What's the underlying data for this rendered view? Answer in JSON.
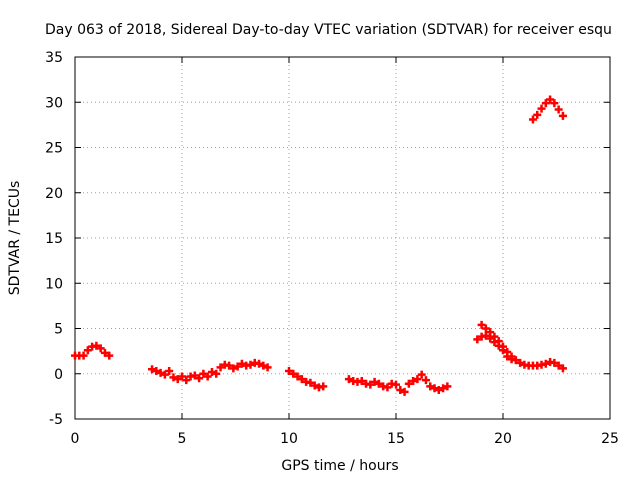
{
  "chart_data": {
    "type": "scatter",
    "title": "Day 063 of 2018, Sidereal Day-to-day VTEC variation (SDTVAR) for receiver esqu",
    "xlabel": "GPS time / hours",
    "ylabel": "SDTVAR / TECUs",
    "xlim": [
      0,
      25
    ],
    "ylim": [
      -5,
      35
    ],
    "xticks": [
      "0",
      "5",
      "10",
      "15",
      "20",
      "25"
    ],
    "yticks": [
      "-5",
      "0",
      "5",
      "10",
      "15",
      "20",
      "25",
      "30",
      "35"
    ],
    "grid": true,
    "marker": "plus",
    "color": "#ff0000",
    "series": [
      {
        "name": "SDTVAR",
        "x": [
          0.0,
          0.2,
          0.4,
          0.6,
          0.8,
          1.0,
          1.2,
          1.4,
          1.6,
          3.6,
          3.8,
          4.0,
          4.2,
          4.4,
          4.6,
          4.8,
          5.0,
          5.2,
          5.4,
          5.6,
          5.8,
          6.0,
          6.2,
          6.4,
          6.6,
          6.8,
          7.0,
          7.2,
          7.4,
          7.6,
          7.8,
          8.0,
          8.2,
          8.4,
          8.6,
          8.8,
          9.0,
          10.0,
          10.2,
          10.4,
          10.6,
          10.8,
          11.0,
          11.2,
          11.4,
          11.6,
          12.8,
          13.0,
          13.2,
          13.4,
          13.6,
          13.8,
          14.0,
          14.2,
          14.4,
          14.6,
          14.8,
          15.0,
          15.2,
          15.4,
          15.6,
          15.8,
          16.0,
          16.2,
          16.4,
          16.6,
          16.8,
          17.0,
          17.2,
          17.4,
          18.8,
          19.0,
          19.2,
          19.4,
          19.6,
          19.8,
          20.0,
          20.2,
          20.4,
          20.6,
          20.8,
          21.0,
          21.2,
          21.4,
          21.6,
          21.8,
          22.0,
          22.2,
          22.4,
          22.6,
          22.8,
          19.0,
          19.2,
          19.4,
          19.6,
          19.8,
          20.0,
          20.2,
          20.4,
          21.4,
          21.6,
          21.8,
          22.0,
          22.2,
          22.4,
          22.6,
          22.8
        ],
        "y": [
          2.0,
          2.0,
          2.0,
          2.6,
          3.0,
          3.1,
          2.8,
          2.3,
          2.0,
          0.5,
          0.3,
          0.1,
          -0.1,
          0.3,
          -0.4,
          -0.6,
          -0.3,
          -0.7,
          -0.3,
          -0.2,
          -0.5,
          0.0,
          -0.3,
          0.2,
          0.0,
          0.7,
          1.0,
          0.9,
          0.6,
          0.8,
          1.1,
          0.9,
          1.0,
          1.2,
          1.1,
          0.9,
          0.7,
          0.3,
          0.0,
          -0.3,
          -0.6,
          -0.9,
          -1.0,
          -1.3,
          -1.5,
          -1.4,
          -0.6,
          -0.8,
          -0.9,
          -0.8,
          -1.1,
          -1.2,
          -0.9,
          -1.1,
          -1.4,
          -1.5,
          -1.1,
          -1.2,
          -1.8,
          -2.0,
          -1.1,
          -0.8,
          -0.6,
          -0.1,
          -0.7,
          -1.4,
          -1.6,
          -1.8,
          -1.6,
          -1.4,
          3.8,
          4.1,
          4.2,
          3.9,
          3.5,
          3.1,
          2.6,
          1.9,
          1.6,
          1.5,
          1.2,
          1.0,
          0.9,
          0.9,
          0.9,
          1.0,
          1.1,
          1.3,
          1.2,
          0.9,
          0.6,
          5.4,
          5.0,
          4.6,
          4.1,
          3.6,
          3.0,
          2.4,
          1.9,
          28.1,
          28.6,
          29.3,
          29.9,
          30.3,
          29.9,
          29.2,
          28.5
        ]
      }
    ]
  }
}
